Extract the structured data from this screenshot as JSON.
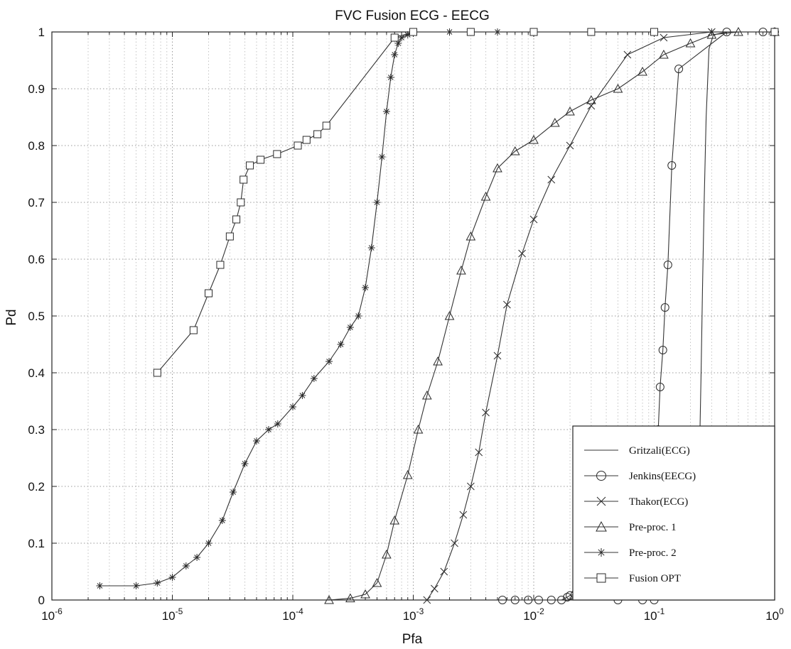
{
  "chart_data": {
    "type": "line",
    "title": "FVC Fusion ECG - EECG",
    "xlabel": "Pfa",
    "ylabel": "Pd",
    "xscale": "log",
    "xlim": [
      1e-06,
      1
    ],
    "ylim": [
      0,
      1
    ],
    "grid": true,
    "legend_position": "bottom-right",
    "x_ticks": [
      {
        "value": 1e-06,
        "base": "10",
        "exp": "-6"
      },
      {
        "value": 1e-05,
        "base": "10",
        "exp": "-5"
      },
      {
        "value": 0.0001,
        "base": "10",
        "exp": "-4"
      },
      {
        "value": 0.001,
        "base": "10",
        "exp": "-3"
      },
      {
        "value": 0.01,
        "base": "10",
        "exp": "-2"
      },
      {
        "value": 0.1,
        "base": "10",
        "exp": "-1"
      },
      {
        "value": 1,
        "base": "10",
        "exp": "0"
      }
    ],
    "y_ticks": [
      {
        "value": 0,
        "label": "0"
      },
      {
        "value": 0.1,
        "label": "0.1"
      },
      {
        "value": 0.2,
        "label": "0.2"
      },
      {
        "value": 0.3,
        "label": "0.3"
      },
      {
        "value": 0.4,
        "label": "0.4"
      },
      {
        "value": 0.5,
        "label": "0.5"
      },
      {
        "value": 0.6,
        "label": "0.6"
      },
      {
        "value": 0.7,
        "label": "0.7"
      },
      {
        "value": 0.8,
        "label": "0.8"
      },
      {
        "value": 0.9,
        "label": "0.9"
      },
      {
        "value": 1,
        "label": "1"
      }
    ],
    "series": [
      {
        "name": "Gritzali(ECG)",
        "marker": "none",
        "color": "#333333",
        "x": [
          0.22,
          0.235,
          0.245,
          0.252,
          0.26,
          0.27,
          0.285,
          0.31,
          0.4,
          1.0
        ],
        "y": [
          0.0,
          0.2,
          0.4,
          0.55,
          0.7,
          0.85,
          0.97,
          0.995,
          1.0,
          1.0
        ]
      },
      {
        "name": "Jenkins(EECG)",
        "marker": "circle",
        "color": "#333333",
        "x": [
          0.0055,
          0.007,
          0.009,
          0.011,
          0.014,
          0.017,
          0.019,
          0.02,
          0.022,
          0.05,
          0.08,
          0.1,
          0.104,
          0.108,
          0.112,
          0.118,
          0.123,
          0.13,
          0.14,
          0.16,
          0.4,
          0.8,
          1.0
        ],
        "y": [
          0.0,
          0.0,
          0.0,
          0.0,
          0.0,
          0.0,
          0.005,
          0.008,
          0.01,
          0.0,
          0.0,
          0.0,
          0.2,
          0.3,
          0.375,
          0.44,
          0.515,
          0.59,
          0.765,
          0.935,
          1.0,
          1.0,
          1.0
        ]
      },
      {
        "name": "Thakor(ECG)",
        "marker": "x",
        "color": "#333333",
        "x": [
          0.0013,
          0.0015,
          0.0018,
          0.0022,
          0.0026,
          0.003,
          0.0035,
          0.004,
          0.005,
          0.006,
          0.008,
          0.01,
          0.014,
          0.02,
          0.03,
          0.06,
          0.12,
          0.3,
          1.0
        ],
        "y": [
          0.0,
          0.02,
          0.05,
          0.1,
          0.15,
          0.2,
          0.26,
          0.33,
          0.43,
          0.52,
          0.61,
          0.67,
          0.74,
          0.8,
          0.87,
          0.96,
          0.99,
          1.0,
          1.0
        ]
      },
      {
        "name": "Pre-proc. 1",
        "marker": "triangle",
        "color": "#333333",
        "x": [
          0.0002,
          0.0003,
          0.0004,
          0.0005,
          0.0006,
          0.0007,
          0.0009,
          0.0011,
          0.0013,
          0.0016,
          0.002,
          0.0025,
          0.003,
          0.004,
          0.005,
          0.007,
          0.01,
          0.015,
          0.02,
          0.03,
          0.05,
          0.08,
          0.12,
          0.2,
          0.3,
          0.5,
          1.0
        ],
        "y": [
          0.0,
          0.003,
          0.01,
          0.03,
          0.08,
          0.14,
          0.22,
          0.3,
          0.36,
          0.42,
          0.5,
          0.58,
          0.64,
          0.71,
          0.76,
          0.79,
          0.81,
          0.84,
          0.86,
          0.88,
          0.9,
          0.93,
          0.96,
          0.98,
          0.995,
          1.0,
          1.0
        ]
      },
      {
        "name": "Pre-proc. 2",
        "marker": "star",
        "color": "#333333",
        "x": [
          2.5e-06,
          5e-06,
          7.5e-06,
          1e-05,
          1.3e-05,
          1.6e-05,
          2e-05,
          2.6e-05,
          3.2e-05,
          4e-05,
          5e-05,
          6.3e-05,
          7.5e-05,
          0.0001,
          0.00012,
          0.00015,
          0.0002,
          0.00025,
          0.0003,
          0.00035,
          0.0004,
          0.00045,
          0.0005,
          0.00055,
          0.0006,
          0.00065,
          0.0007,
          0.00075,
          0.0008,
          0.0009,
          0.001,
          0.002,
          0.005,
          0.01,
          0.03,
          0.1,
          0.3,
          1.0
        ],
        "y": [
          0.025,
          0.025,
          0.03,
          0.04,
          0.06,
          0.075,
          0.1,
          0.14,
          0.19,
          0.24,
          0.28,
          0.3,
          0.31,
          0.34,
          0.36,
          0.39,
          0.42,
          0.45,
          0.48,
          0.5,
          0.55,
          0.62,
          0.7,
          0.78,
          0.86,
          0.92,
          0.96,
          0.98,
          0.99,
          0.995,
          1.0,
          1.0,
          1.0,
          1.0,
          1.0,
          1.0,
          1.0,
          1.0
        ]
      },
      {
        "name": "Fusion OPT",
        "marker": "square",
        "color": "#333333",
        "x": [
          7.5e-06,
          1.5e-05,
          2e-05,
          2.5e-05,
          3e-05,
          3.4e-05,
          3.7e-05,
          3.9e-05,
          4.4e-05,
          5.4e-05,
          7.4e-05,
          0.00011,
          0.00013,
          0.00016,
          0.00019,
          0.0007,
          0.001,
          0.003,
          0.01,
          0.03,
          0.1,
          1.0
        ],
        "y": [
          0.4,
          0.475,
          0.54,
          0.59,
          0.64,
          0.67,
          0.7,
          0.74,
          0.765,
          0.775,
          0.785,
          0.8,
          0.81,
          0.82,
          0.835,
          0.99,
          1.0,
          1.0,
          1.0,
          1.0,
          1.0,
          1.0
        ]
      }
    ]
  }
}
